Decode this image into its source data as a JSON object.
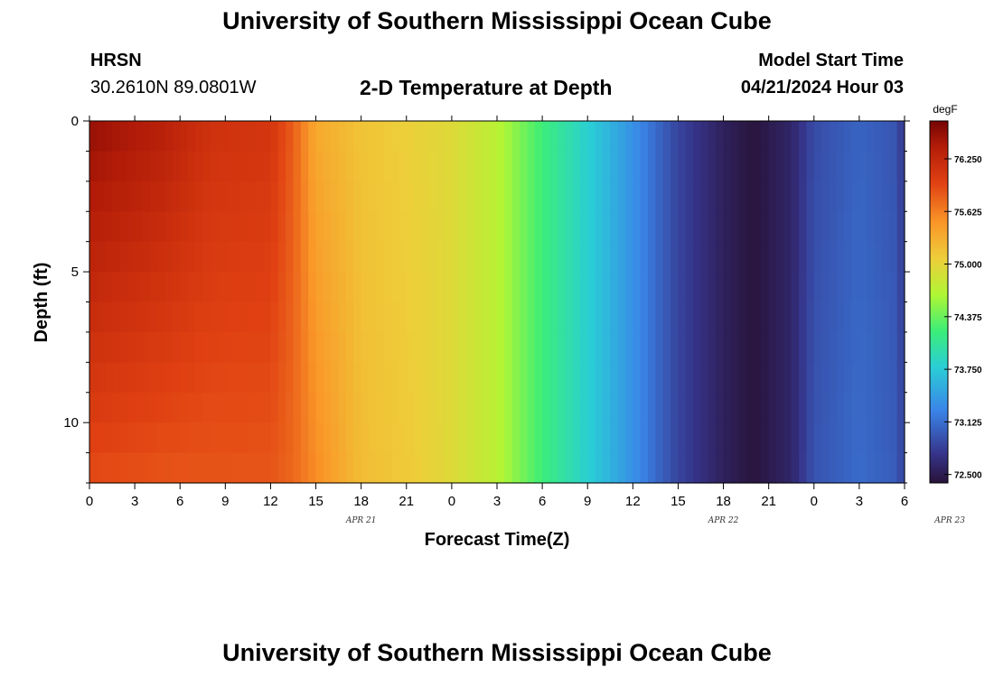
{
  "header": {
    "title": "University of Southern Mississippi Ocean Cube",
    "station": "HRSN",
    "coords": "30.2610N  89.0801W",
    "subtitle": "2-D Temperature at Depth",
    "model_label": "Model Start Time",
    "model_time": "04/21/2024 Hour 03"
  },
  "footer": {
    "title": "University of Southern Mississippi Ocean Cube"
  },
  "chart_data": {
    "type": "heatmap",
    "xlabel": "Forecast Time(Z)",
    "ylabel": "Depth (ft)",
    "x_ticks": [
      "0",
      "3",
      "6",
      "9",
      "12",
      "15",
      "18",
      "21",
      "0",
      "3",
      "6",
      "9",
      "12",
      "15",
      "18",
      "21",
      "0",
      "3",
      "6"
    ],
    "x_dates": [
      {
        "label": "APR 21",
        "hour_index": 36
      },
      {
        "label": "APR 22",
        "hour_index": 84
      },
      {
        "label": "APR 23",
        "hour_index": 114
      }
    ],
    "x_range_hours": [
      0,
      54
    ],
    "y_ticks": [
      "0",
      "5",
      "10"
    ],
    "ylim": [
      0,
      12
    ],
    "y_inverted": true,
    "colorbar": {
      "unit": "degF",
      "range": [
        72.4,
        76.7
      ],
      "ticks": [
        "76.250",
        "75.625",
        "75.000",
        "74.375",
        "73.750",
        "73.125",
        "72.500"
      ],
      "tick_values": [
        76.25,
        75.625,
        75.0,
        74.375,
        73.75,
        73.125,
        72.5
      ]
    },
    "time_profile_degF": [
      {
        "hour": 0,
        "surface": 76.55,
        "bottom": 75.9
      },
      {
        "hour": 5,
        "surface": 76.35,
        "bottom": 75.85
      },
      {
        "hour": 8,
        "surface": 76.15,
        "bottom": 75.85
      },
      {
        "hour": 12,
        "surface": 76.1,
        "bottom": 75.85
      },
      {
        "hour": 13.5,
        "surface": 75.8,
        "bottom": 75.75
      },
      {
        "hour": 15,
        "surface": 75.35,
        "bottom": 75.55
      },
      {
        "hour": 18,
        "surface": 75.15,
        "bottom": 75.2
      },
      {
        "hour": 21,
        "surface": 75.05,
        "bottom": 75.1
      },
      {
        "hour": 24,
        "surface": 74.95,
        "bottom": 74.95
      },
      {
        "hour": 27,
        "surface": 74.7,
        "bottom": 74.7
      },
      {
        "hour": 30,
        "surface": 74.2,
        "bottom": 74.2
      },
      {
        "hour": 33,
        "surface": 73.8,
        "bottom": 73.8
      },
      {
        "hour": 36,
        "surface": 73.35,
        "bottom": 73.35
      },
      {
        "hour": 39,
        "surface": 72.85,
        "bottom": 72.85
      },
      {
        "hour": 42,
        "surface": 72.55,
        "bottom": 72.55
      },
      {
        "hour": 44,
        "surface": 72.42,
        "bottom": 72.42
      },
      {
        "hour": 46.5,
        "surface": 72.6,
        "bottom": 72.6
      },
      {
        "hour": 48,
        "surface": 72.9,
        "bottom": 72.95
      },
      {
        "hour": 51,
        "surface": 73.05,
        "bottom": 73.1
      },
      {
        "hour": 53.5,
        "surface": 72.95,
        "bottom": 73.0
      },
      {
        "hour": 54,
        "surface": 72.7,
        "bottom": 72.8
      }
    ]
  }
}
